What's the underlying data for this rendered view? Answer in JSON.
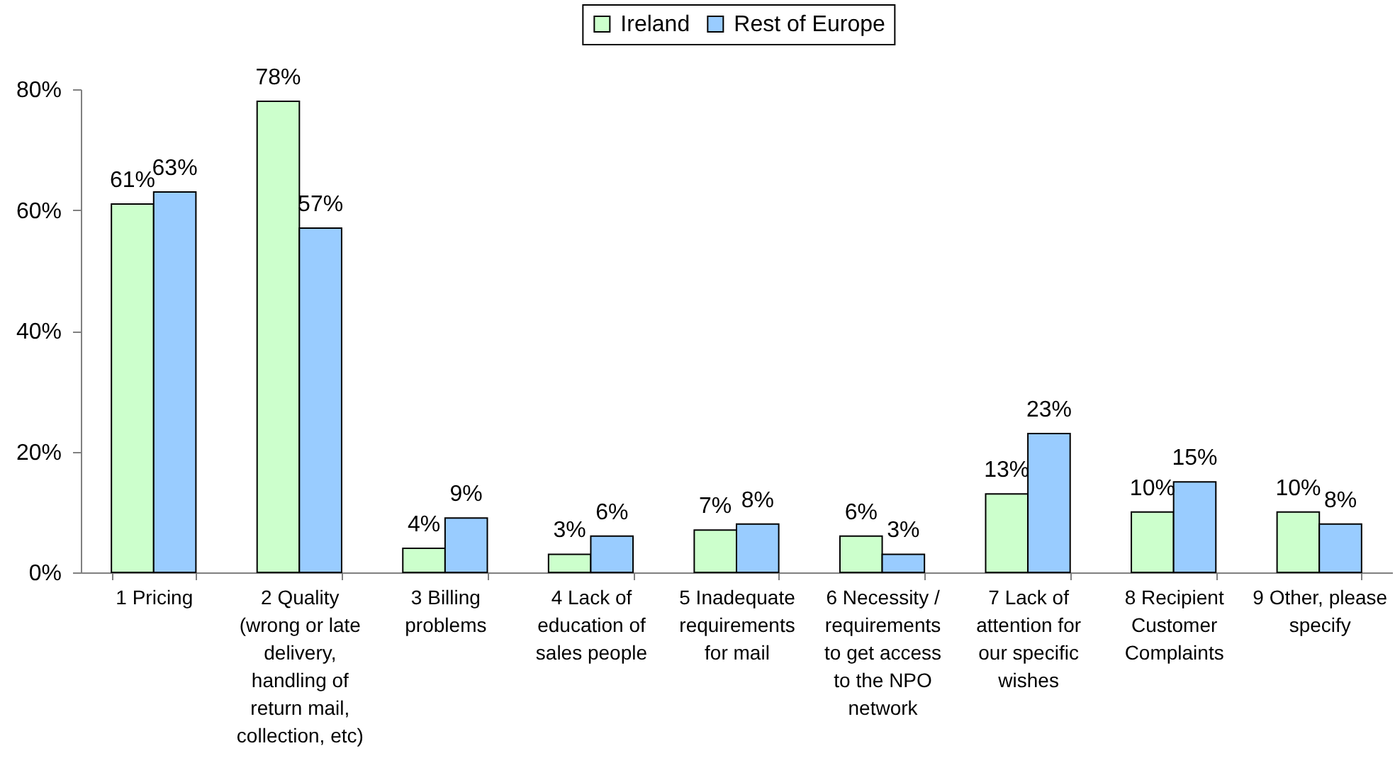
{
  "chart_data": {
    "type": "bar",
    "categories": [
      "1 Pricing",
      "2 Quality (wrong or late delivery, handling of return mail, collection, etc)",
      "3 Billing problems",
      "4 Lack of education of sales people",
      "5 Inadequate requirements for mail",
      "6 Necessity / requirements to get access to the NPO network",
      "7 Lack of attention for our specific wishes",
      "8 Recipient Customer Complaints",
      "9 Other, please specify"
    ],
    "series": [
      {
        "name": "Ireland",
        "color": "#ccffcc",
        "values": [
          61,
          78,
          4,
          3,
          7,
          6,
          13,
          10,
          10
        ],
        "value_labels": [
          "61%",
          "78%",
          "4%",
          "3%",
          "7%",
          "6%",
          "13%",
          "10%",
          "10%"
        ]
      },
      {
        "name": "Rest of Europe",
        "color": "#99ccff",
        "values": [
          63,
          57,
          9,
          6,
          8,
          3,
          23,
          15,
          8
        ],
        "value_labels": [
          "63%",
          "57%",
          "9%",
          "6%",
          "8%",
          "3%",
          "23%",
          "15%",
          "8%"
        ]
      }
    ],
    "ylim": [
      0,
      80
    ],
    "yticks": [
      {
        "value": 0,
        "label": "0%"
      },
      {
        "value": 20,
        "label": "20%"
      },
      {
        "value": 40,
        "label": "40%"
      },
      {
        "value": 60,
        "label": "60%"
      },
      {
        "value": 80,
        "label": "80%"
      }
    ],
    "grid": false,
    "legend": "top"
  }
}
